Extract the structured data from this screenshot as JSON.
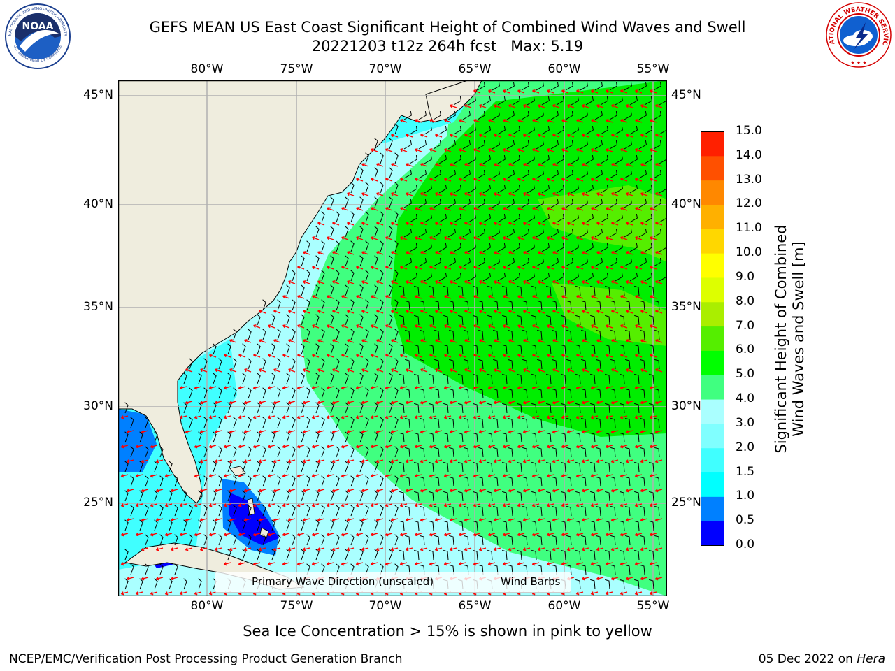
{
  "title": {
    "line1": "GEFS MEAN US East Coast Significant Height of Combined Wind Waves and Swell",
    "line2": "20221203 t12z 264h fcst   Max: 5.19"
  },
  "map": {
    "lon_ticks": [
      "80°W",
      "75°W",
      "70°W",
      "65°W",
      "60°W",
      "55°W"
    ],
    "lat_ticks": [
      "45°N",
      "40°N",
      "35°N",
      "30°N",
      "25°N"
    ],
    "extent": {
      "lon_min": -85,
      "lon_max": -54.2,
      "lat_min": 20.5,
      "lat_max": 45.8
    },
    "land_color": "#efedde",
    "grid_color": "#b0b0b0"
  },
  "colorbar": {
    "ticks": [
      "0.0",
      "0.5",
      "1.0",
      "1.5",
      "2.0",
      "3.0",
      "4.0",
      "5.0",
      "6.0",
      "7.0",
      "8.0",
      "9.0",
      "10.0",
      "11.0",
      "12.0",
      "13.0",
      "14.0",
      "15.0"
    ],
    "colors": [
      "#0000ff",
      "#0080ff",
      "#00ffff",
      "#40ffff",
      "#80ffff",
      "#aaffff",
      "#40ff80",
      "#00ff00",
      "#55ee00",
      "#aaee00",
      "#ddff00",
      "#ffff00",
      "#ffd700",
      "#ffb000",
      "#ff8800",
      "#ff5000",
      "#ff2000",
      "#ff0000"
    ],
    "label_line1": "Significant Height of Combined",
    "label_line2": "Wind Waves and Swell [m]"
  },
  "legend": {
    "wave_label": "Primary Wave Direction (unscaled)",
    "barb_label": "Wind Barbs",
    "wave_color": "#ff0000",
    "barb_color": "#000000"
  },
  "caption": "Sea Ice Concentration > 15% is shown in pink to yellow",
  "footer": {
    "left": "NCEP/EMC/Verification Post Processing Product Generation Branch",
    "right_prefix": "05 Dec 2022 on ",
    "right_machine": "Hera"
  },
  "logos": {
    "noaa_text": "NOAA",
    "noaa_ring": "NATIONAL OCEANIC AND ATMOSPHERIC ADMINISTRATION",
    "noaa_ring_bottom": "U.S. DEPARTMENT OF COMMERCE",
    "nws_ring": "NATIONAL WEATHER SERVICE"
  }
}
